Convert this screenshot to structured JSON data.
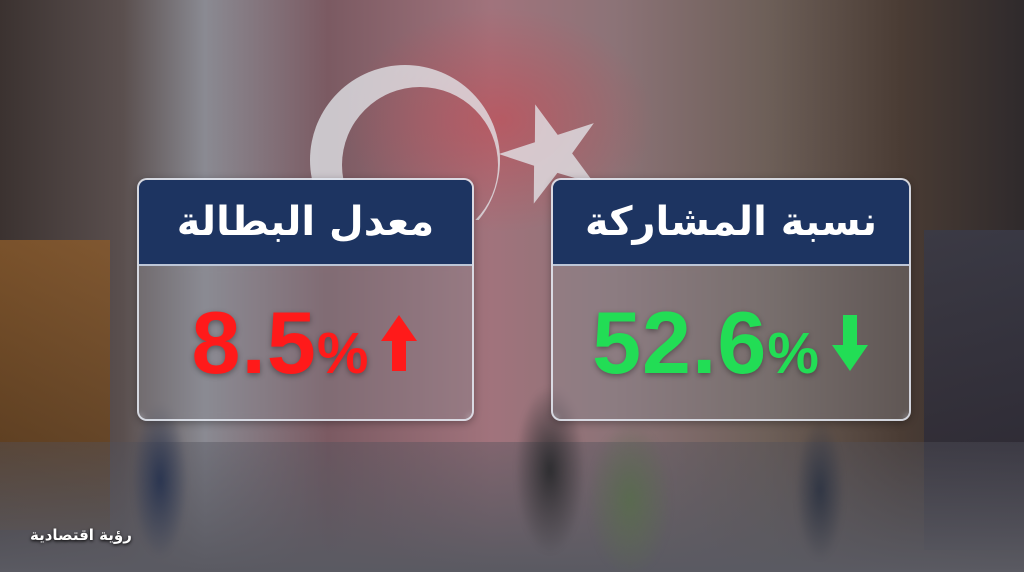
{
  "colors": {
    "header": "#1d3461",
    "up": "#ff1a1a",
    "down": "#22dd55"
  },
  "cards": [
    {
      "title": "معدل البطالة",
      "value": "8.5",
      "unit": "%",
      "trend": "up",
      "trend_icon": "arrow-up-icon"
    },
    {
      "title": "نسبة المشاركة",
      "value": "52.6",
      "unit": "%",
      "trend": "down",
      "trend_icon": "arrow-down-icon"
    }
  ],
  "logo": {
    "text": "رؤية اقتصادية"
  }
}
